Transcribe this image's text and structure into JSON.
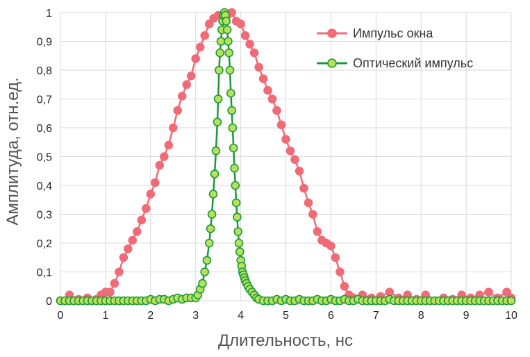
{
  "chart_data": {
    "type": "scatter",
    "xlabel": "Длительность, нс",
    "ylabel": "Амплитуда, отн.ед.",
    "xlim": [
      0,
      10
    ],
    "ylim": [
      0,
      1
    ],
    "x_ticks": [
      "0",
      "1",
      "2",
      "3",
      "4",
      "5",
      "6",
      "7",
      "8",
      "9",
      "10"
    ],
    "y_ticks": [
      "0",
      "0,1",
      "0,2",
      "0,3",
      "0,4",
      "0,5",
      "0,6",
      "0,7",
      "0,8",
      "0,9",
      "1"
    ],
    "grid": true,
    "legend_position": "top-right",
    "series": [
      {
        "name": "Импульс окна",
        "color": "#ef6b76",
        "marker_edge": "#ef6b76",
        "points": [
          [
            0,
            0
          ],
          [
            0.2,
            0.02
          ],
          [
            0.4,
            0.005
          ],
          [
            0.6,
            0.01
          ],
          [
            0.8,
            0.005
          ],
          [
            0.9,
            0.02
          ],
          [
            1.0,
            0.03
          ],
          [
            1.1,
            0.03
          ],
          [
            1.2,
            0.06
          ],
          [
            1.3,
            0.1
          ],
          [
            1.4,
            0.15
          ],
          [
            1.5,
            0.18
          ],
          [
            1.6,
            0.21
          ],
          [
            1.7,
            0.24
          ],
          [
            1.8,
            0.28
          ],
          [
            1.9,
            0.32
          ],
          [
            2.0,
            0.37
          ],
          [
            2.1,
            0.41
          ],
          [
            2.2,
            0.47
          ],
          [
            2.3,
            0.5
          ],
          [
            2.4,
            0.54
          ],
          [
            2.5,
            0.6
          ],
          [
            2.6,
            0.66
          ],
          [
            2.7,
            0.71
          ],
          [
            2.8,
            0.75
          ],
          [
            2.9,
            0.78
          ],
          [
            3.0,
            0.84
          ],
          [
            3.1,
            0.88
          ],
          [
            3.2,
            0.92
          ],
          [
            3.3,
            0.96
          ],
          [
            3.4,
            0.98
          ],
          [
            3.5,
            0.99
          ],
          [
            3.6,
            0.97
          ],
          [
            3.7,
            0.99
          ],
          [
            3.8,
            1.0
          ],
          [
            3.9,
            0.97
          ],
          [
            4.0,
            0.96
          ],
          [
            4.1,
            0.92
          ],
          [
            4.2,
            0.89
          ],
          [
            4.3,
            0.86
          ],
          [
            4.4,
            0.81
          ],
          [
            4.5,
            0.77
          ],
          [
            4.6,
            0.73
          ],
          [
            4.7,
            0.7
          ],
          [
            4.8,
            0.66
          ],
          [
            4.9,
            0.61
          ],
          [
            5.0,
            0.56
          ],
          [
            5.1,
            0.52
          ],
          [
            5.2,
            0.49
          ],
          [
            5.3,
            0.45
          ],
          [
            5.4,
            0.39
          ],
          [
            5.5,
            0.34
          ],
          [
            5.6,
            0.3
          ],
          [
            5.7,
            0.24
          ],
          [
            5.8,
            0.21
          ],
          [
            5.9,
            0.2
          ],
          [
            6.0,
            0.19
          ],
          [
            6.1,
            0.15
          ],
          [
            6.2,
            0.1
          ],
          [
            6.3,
            0.05
          ],
          [
            6.4,
            0.02
          ],
          [
            6.5,
            0.01
          ],
          [
            6.7,
            0.02
          ],
          [
            6.9,
            0.01
          ],
          [
            7.1,
            0.015
          ],
          [
            7.3,
            0.03
          ],
          [
            7.5,
            0.01
          ],
          [
            7.7,
            0.02
          ],
          [
            7.9,
            0.005
          ],
          [
            8.1,
            0.02
          ],
          [
            8.3,
            0.0
          ],
          [
            8.5,
            0.01
          ],
          [
            8.7,
            0.005
          ],
          [
            8.9,
            0.02
          ],
          [
            9.1,
            0.01
          ],
          [
            9.3,
            0.02
          ],
          [
            9.5,
            0.03
          ],
          [
            9.7,
            0.01
          ],
          [
            9.9,
            0.03
          ],
          [
            10.0,
            0.01
          ]
        ]
      },
      {
        "name": "Оптический импульс",
        "color": "#1a9a3c",
        "marker_fill": "#b9e05a",
        "points": [
          [
            0,
            0
          ],
          [
            0.1,
            0.0
          ],
          [
            0.2,
            0.0
          ],
          [
            0.3,
            0.0
          ],
          [
            0.4,
            0.0
          ],
          [
            0.5,
            0.0
          ],
          [
            0.6,
            0.0
          ],
          [
            0.7,
            0.0
          ],
          [
            0.8,
            0.0
          ],
          [
            0.9,
            0.0
          ],
          [
            1.0,
            0.0
          ],
          [
            1.1,
            0.0
          ],
          [
            1.2,
            0.0
          ],
          [
            1.3,
            0.0
          ],
          [
            1.4,
            0.0
          ],
          [
            1.5,
            0.0
          ],
          [
            1.6,
            0.0
          ],
          [
            1.7,
            0.0
          ],
          [
            1.8,
            0.0
          ],
          [
            1.9,
            0.0
          ],
          [
            2.0,
            0.005
          ],
          [
            2.1,
            0.0
          ],
          [
            2.2,
            0.005
          ],
          [
            2.3,
            0.005
          ],
          [
            2.4,
            0.0
          ],
          [
            2.5,
            0.005
          ],
          [
            2.6,
            0.01
          ],
          [
            2.7,
            0.005
          ],
          [
            2.8,
            0.01
          ],
          [
            2.9,
            0.01
          ],
          [
            3.0,
            0.01
          ],
          [
            3.05,
            0.02
          ],
          [
            3.1,
            0.04
          ],
          [
            3.15,
            0.06
          ],
          [
            3.2,
            0.1
          ],
          [
            3.25,
            0.14
          ],
          [
            3.3,
            0.2
          ],
          [
            3.33,
            0.25
          ],
          [
            3.36,
            0.3
          ],
          [
            3.39,
            0.37
          ],
          [
            3.42,
            0.44
          ],
          [
            3.45,
            0.52
          ],
          [
            3.48,
            0.62
          ],
          [
            3.5,
            0.7
          ],
          [
            3.52,
            0.8
          ],
          [
            3.54,
            0.86
          ],
          [
            3.56,
            0.9
          ],
          [
            3.58,
            0.94
          ],
          [
            3.6,
            0.97
          ],
          [
            3.62,
            0.99
          ],
          [
            3.64,
            1.0
          ],
          [
            3.66,
            0.99
          ],
          [
            3.68,
            0.97
          ],
          [
            3.7,
            0.94
          ],
          [
            3.72,
            0.9
          ],
          [
            3.74,
            0.86
          ],
          [
            3.76,
            0.8
          ],
          [
            3.78,
            0.72
          ],
          [
            3.8,
            0.66
          ],
          [
            3.82,
            0.6
          ],
          [
            3.84,
            0.53
          ],
          [
            3.86,
            0.46
          ],
          [
            3.88,
            0.4
          ],
          [
            3.9,
            0.34
          ],
          [
            3.92,
            0.29
          ],
          [
            3.94,
            0.24
          ],
          [
            3.96,
            0.2
          ],
          [
            3.98,
            0.17
          ],
          [
            4.0,
            0.14
          ],
          [
            4.02,
            0.12
          ],
          [
            4.04,
            0.1
          ],
          [
            4.06,
            0.09
          ],
          [
            4.08,
            0.08
          ],
          [
            4.1,
            0.07
          ],
          [
            4.13,
            0.06
          ],
          [
            4.16,
            0.05
          ],
          [
            4.2,
            0.04
          ],
          [
            4.25,
            0.03
          ],
          [
            4.3,
            0.02
          ],
          [
            4.35,
            0.01
          ],
          [
            4.4,
            0.005
          ],
          [
            4.5,
            0.0
          ],
          [
            4.6,
            0.0
          ],
          [
            4.7,
            0.0
          ],
          [
            4.8,
            0.005
          ],
          [
            4.9,
            0.0
          ],
          [
            5.0,
            0.005
          ],
          [
            5.1,
            0.0
          ],
          [
            5.2,
            0.0
          ],
          [
            5.3,
            0.005
          ],
          [
            5.4,
            0.0
          ],
          [
            5.5,
            0.0
          ],
          [
            5.6,
            0.0
          ],
          [
            5.7,
            0.005
          ],
          [
            5.8,
            0.0
          ],
          [
            5.9,
            0.0
          ],
          [
            6.0,
            0.005
          ],
          [
            6.1,
            0.0
          ],
          [
            6.2,
            0.0
          ],
          [
            6.3,
            0.005
          ],
          [
            6.4,
            0.0
          ],
          [
            6.5,
            0.0
          ],
          [
            6.6,
            0.005
          ],
          [
            6.7,
            0.0
          ],
          [
            6.8,
            0.0
          ],
          [
            6.9,
            0.0
          ],
          [
            7.0,
            0.0
          ],
          [
            7.1,
            0.0
          ],
          [
            7.2,
            0.0
          ],
          [
            7.3,
            0.005
          ],
          [
            7.4,
            0.0
          ],
          [
            7.5,
            0.0
          ],
          [
            7.6,
            0.0
          ],
          [
            7.7,
            0.0
          ],
          [
            7.8,
            0.0
          ],
          [
            7.9,
            0.0
          ],
          [
            8.0,
            0.0
          ],
          [
            8.1,
            0.0
          ],
          [
            8.2,
            0.0
          ],
          [
            8.3,
            0.0
          ],
          [
            8.4,
            0.0
          ],
          [
            8.5,
            0.0
          ],
          [
            8.6,
            0.0
          ],
          [
            8.7,
            0.0
          ],
          [
            8.8,
            0.0
          ],
          [
            8.9,
            0.0
          ],
          [
            9.0,
            0.0
          ],
          [
            9.1,
            0.0
          ],
          [
            9.2,
            0.0
          ],
          [
            9.3,
            0.0
          ],
          [
            9.4,
            0.0
          ],
          [
            9.5,
            0.0
          ],
          [
            9.6,
            0.0
          ],
          [
            9.7,
            0.0
          ],
          [
            9.8,
            0.0
          ],
          [
            9.9,
            0.0
          ],
          [
            10.0,
            0.0
          ]
        ]
      }
    ]
  }
}
